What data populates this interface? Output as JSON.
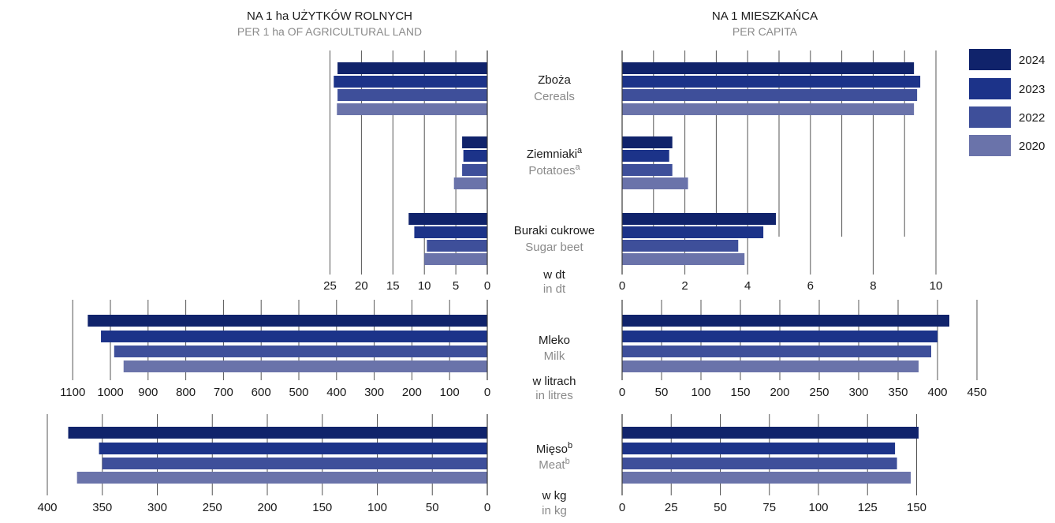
{
  "headers": {
    "left": {
      "pl": "NA 1 ha UŻYTKÓW ROLNYCH",
      "en": "PER 1 ha OF AGRICULTURAL LAND"
    },
    "right": {
      "pl": "NA 1 MIESZKAŃCA",
      "en": "PER CAPITA"
    }
  },
  "legend": [
    {
      "label": "2024",
      "color": "#10236b"
    },
    {
      "label": "2023",
      "color": "#1c3389"
    },
    {
      "label": "2022",
      "color": "#3e4f9a"
    },
    {
      "label": "2020",
      "color": "#6a73aa"
    }
  ],
  "colors": {
    "axis": "#3a3a3a",
    "grid": "#555555",
    "category_pl": "#1a1a1a",
    "category_en": "#8a8a8a"
  },
  "chart_data": [
    {
      "type": "bar",
      "orientation": "horizontal",
      "panel": "per-1-ha-dt",
      "unit_pl": "w dt",
      "unit_en": "in dt",
      "xlim": [
        0,
        25
      ],
      "ticks": [
        25,
        20,
        15,
        10,
        5,
        0
      ],
      "categories": [
        {
          "pl": "Zboża",
          "en": "Cereals",
          "sup": ""
        },
        {
          "pl": "Ziemniaki",
          "en": "Potatoes",
          "sup": "a"
        },
        {
          "pl": "Buraki cukrowe",
          "en": "Sugar beet",
          "sup": ""
        }
      ],
      "series": [
        {
          "name": "2024",
          "values": [
            23.8,
            4.0,
            12.5
          ]
        },
        {
          "name": "2023",
          "values": [
            24.4,
            3.8,
            11.6
          ]
        },
        {
          "name": "2022",
          "values": [
            23.8,
            4.0,
            9.6
          ]
        },
        {
          "name": "2020",
          "values": [
            23.9,
            5.3,
            10.0
          ]
        }
      ]
    },
    {
      "type": "bar",
      "orientation": "horizontal",
      "panel": "per-capita-dt",
      "unit_pl": "w dt",
      "unit_en": "in dt",
      "xlim": [
        0,
        10
      ],
      "ticks": [
        0,
        2,
        4,
        6,
        8,
        10
      ],
      "categories": [
        {
          "pl": "Zboża",
          "en": "Cereals",
          "sup": ""
        },
        {
          "pl": "Ziemniaki",
          "en": "Potatoes",
          "sup": "a"
        },
        {
          "pl": "Buraki cukrowe",
          "en": "Sugar beet",
          "sup": ""
        }
      ],
      "series": [
        {
          "name": "2024",
          "values": [
            9.3,
            1.6,
            4.9
          ]
        },
        {
          "name": "2023",
          "values": [
            9.5,
            1.5,
            4.5
          ]
        },
        {
          "name": "2022",
          "values": [
            9.4,
            1.6,
            3.7
          ]
        },
        {
          "name": "2020",
          "values": [
            9.3,
            2.1,
            3.9
          ]
        }
      ]
    },
    {
      "type": "bar",
      "orientation": "horizontal",
      "panel": "per-1-ha-litres",
      "unit_pl": "w litrach",
      "unit_en": "in litres",
      "xlim": [
        0,
        1100
      ],
      "ticks": [
        1100,
        1000,
        900,
        800,
        700,
        600,
        500,
        400,
        300,
        200,
        100,
        0
      ],
      "categories": [
        {
          "pl": "Mleko",
          "en": "Milk",
          "sup": ""
        }
      ],
      "series": [
        {
          "name": "2024",
          "values": [
            1060
          ]
        },
        {
          "name": "2023",
          "values": [
            1025
          ]
        },
        {
          "name": "2022",
          "values": [
            990
          ]
        },
        {
          "name": "2020",
          "values": [
            965
          ]
        }
      ]
    },
    {
      "type": "bar",
      "orientation": "horizontal",
      "panel": "per-capita-litres",
      "unit_pl": "w litrach",
      "unit_en": "in litres",
      "xlim": [
        0,
        450
      ],
      "ticks": [
        0,
        50,
        100,
        150,
        200,
        250,
        300,
        350,
        400,
        450
      ],
      "categories": [
        {
          "pl": "Mleko",
          "en": "Milk",
          "sup": ""
        }
      ],
      "series": [
        {
          "name": "2024",
          "values": [
            415
          ]
        },
        {
          "name": "2023",
          "values": [
            400
          ]
        },
        {
          "name": "2022",
          "values": [
            392
          ]
        },
        {
          "name": "2020",
          "values": [
            376
          ]
        }
      ]
    },
    {
      "type": "bar",
      "orientation": "horizontal",
      "panel": "per-1-ha-kg",
      "unit_pl": "w kg",
      "unit_en": "in kg",
      "xlim": [
        0,
        400
      ],
      "ticks": [
        400,
        350,
        300,
        250,
        200,
        150,
        100,
        50,
        0
      ],
      "categories": [
        {
          "pl": "Mięso",
          "en": "Meat",
          "sup": "b"
        }
      ],
      "series": [
        {
          "name": "2024",
          "values": [
            381
          ]
        },
        {
          "name": "2023",
          "values": [
            353
          ]
        },
        {
          "name": "2022",
          "values": [
            350
          ]
        },
        {
          "name": "2020",
          "values": [
            373
          ]
        }
      ]
    },
    {
      "type": "bar",
      "orientation": "horizontal",
      "panel": "per-capita-kg",
      "unit_pl": "w kg",
      "unit_en": "in kg",
      "xlim": [
        0,
        150
      ],
      "ticks": [
        0,
        25,
        50,
        75,
        100,
        125,
        150
      ],
      "categories": [
        {
          "pl": "Mięso",
          "en": "Meat",
          "sup": "b"
        }
      ],
      "series": [
        {
          "name": "2024",
          "values": [
            151
          ]
        },
        {
          "name": "2023",
          "values": [
            139
          ]
        },
        {
          "name": "2022",
          "values": [
            140
          ]
        },
        {
          "name": "2020",
          "values": [
            147
          ]
        }
      ]
    }
  ]
}
